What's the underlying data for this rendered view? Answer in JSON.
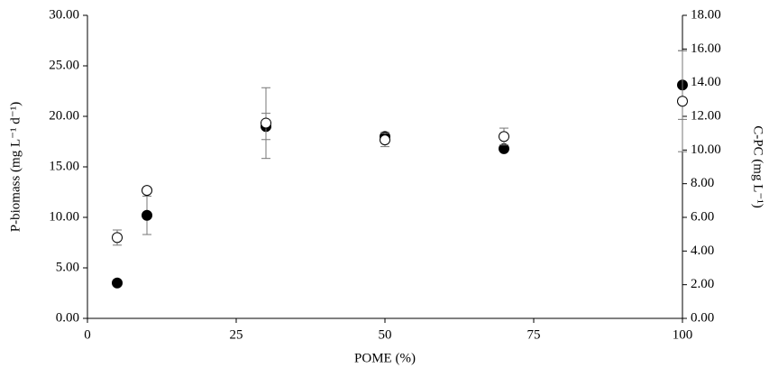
{
  "chart_data": {
    "type": "scatter",
    "x_label": "POME (%)",
    "y_label": "P-biomass (mg L⁻¹ d⁻¹)",
    "y2_label": "C-PC (mg L⁻¹)",
    "xlim": [
      0,
      100
    ],
    "xticks": [
      0,
      25,
      50,
      75,
      100
    ],
    "ylim": [
      0,
      30
    ],
    "yticks": [
      {
        "value": 0,
        "label": "0.00"
      },
      {
        "value": 5,
        "label": "5.00"
      },
      {
        "value": 10,
        "label": "10.00"
      },
      {
        "value": 15,
        "label": "15.00"
      },
      {
        "value": 20,
        "label": "20.00"
      },
      {
        "value": 25,
        "label": "25.00"
      },
      {
        "value": 30,
        "label": "30.00"
      }
    ],
    "y2lim": [
      0,
      18
    ],
    "y2ticks": [
      {
        "value": 0,
        "label": "0.00"
      },
      {
        "value": 2,
        "label": "2.00"
      },
      {
        "value": 4,
        "label": "4.00"
      },
      {
        "value": 6,
        "label": "6.00"
      },
      {
        "value": 8,
        "label": "8.00"
      },
      {
        "value": 10,
        "label": "10.00"
      },
      {
        "value": 12,
        "label": "12.00"
      },
      {
        "value": 14,
        "label": "14.00"
      },
      {
        "value": 16,
        "label": "16.00"
      },
      {
        "value": 18,
        "label": "18.00"
      }
    ],
    "series": [
      {
        "color": "#000000",
        "marker": "filled",
        "x": [
          5,
          10,
          30,
          50,
          70,
          100
        ],
        "values": [
          3.5,
          10.2,
          19.0,
          18.0,
          16.8,
          23.1
        ],
        "errors": [
          0.2,
          1.9,
          1.3,
          0.4,
          0.2,
          3.4
        ]
      },
      {
        "color": "#000000",
        "marker": "open",
        "axis": "y2",
        "x": [
          5,
          10,
          30,
          50,
          70,
          100
        ],
        "values": [
          4.8,
          7.6,
          11.6,
          10.6,
          10.8,
          12.9
        ],
        "errors": [
          0.45,
          0.1,
          2.1,
          0.4,
          0.5,
          3.0
        ]
      }
    ]
  }
}
